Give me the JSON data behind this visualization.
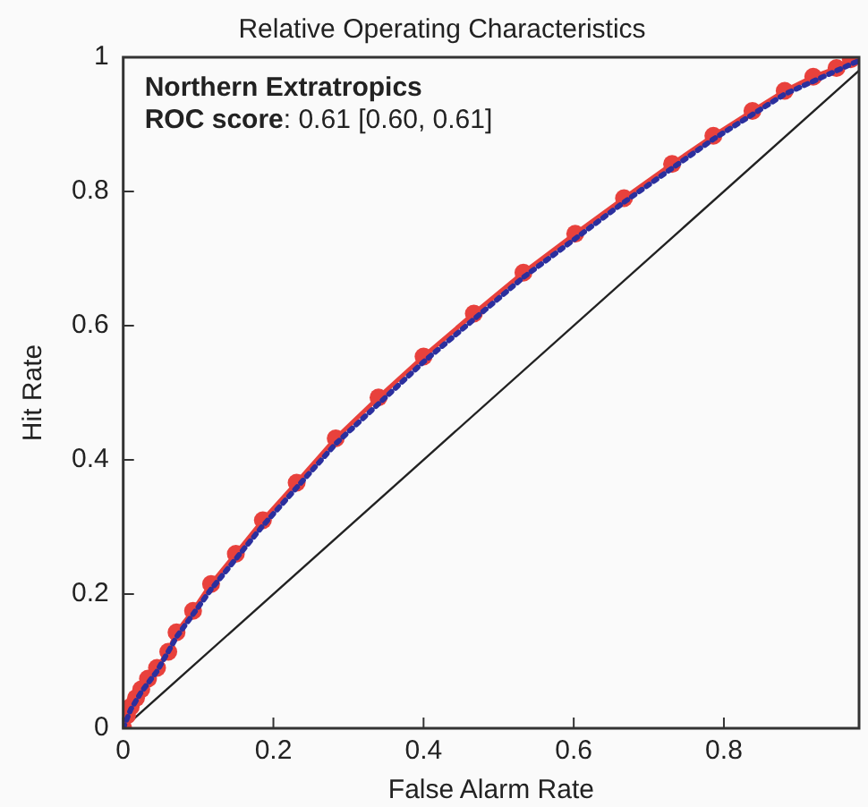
{
  "chart_data": {
    "type": "line",
    "title": "Relative Operating Characteristics",
    "xlabel": "False Alarm Rate",
    "ylabel": "Hit Rate",
    "annotations": [
      "Northern Extratropics",
      "ROC score: 0.61 [0.60, 0.61]"
    ],
    "xlim": [
      0,
      0.98
    ],
    "ylim": [
      0,
      1
    ],
    "xticks": [
      0,
      0.2,
      0.4,
      0.6,
      0.8
    ],
    "yticks": [
      0,
      0.2,
      0.4,
      0.6,
      0.8,
      1
    ],
    "grid": false,
    "legend": false,
    "series": [
      {
        "color": "#e8413c",
        "marker": "circle",
        "line_style": "solid",
        "x": [
          0,
          0.005,
          0.01,
          0.017,
          0.024,
          0.033,
          0.045,
          0.06,
          0.071,
          0.093,
          0.117,
          0.15,
          0.186,
          0.231,
          0.283,
          0.34,
          0.4,
          0.467,
          0.533,
          0.602,
          0.667,
          0.731,
          0.786,
          0.838,
          0.881,
          0.919,
          0.95,
          0.969
        ],
        "values": [
          0,
          0.019,
          0.032,
          0.045,
          0.058,
          0.074,
          0.09,
          0.114,
          0.143,
          0.175,
          0.215,
          0.26,
          0.31,
          0.366,
          0.432,
          0.493,
          0.554,
          0.618,
          0.679,
          0.737,
          0.79,
          0.841,
          0.883,
          0.92,
          0.95,
          0.971,
          0.984,
          0.997
        ]
      },
      {
        "color": "#2b2f9e",
        "marker": "none",
        "line_style": "dotted",
        "x": [
          0,
          0.01,
          0.024,
          0.045,
          0.071,
          0.117,
          0.186,
          0.283,
          0.4,
          0.533,
          0.667,
          0.786,
          0.881,
          0.95,
          0.98
        ],
        "values": [
          0,
          0.028,
          0.054,
          0.085,
          0.136,
          0.207,
          0.302,
          0.424,
          0.546,
          0.672,
          0.784,
          0.878,
          0.945,
          0.98,
          0.995
        ]
      },
      {
        "color": "#222222",
        "marker": "none",
        "line_style": "solid",
        "x": [
          0,
          0.98
        ],
        "values": [
          0,
          0.98
        ]
      }
    ]
  }
}
